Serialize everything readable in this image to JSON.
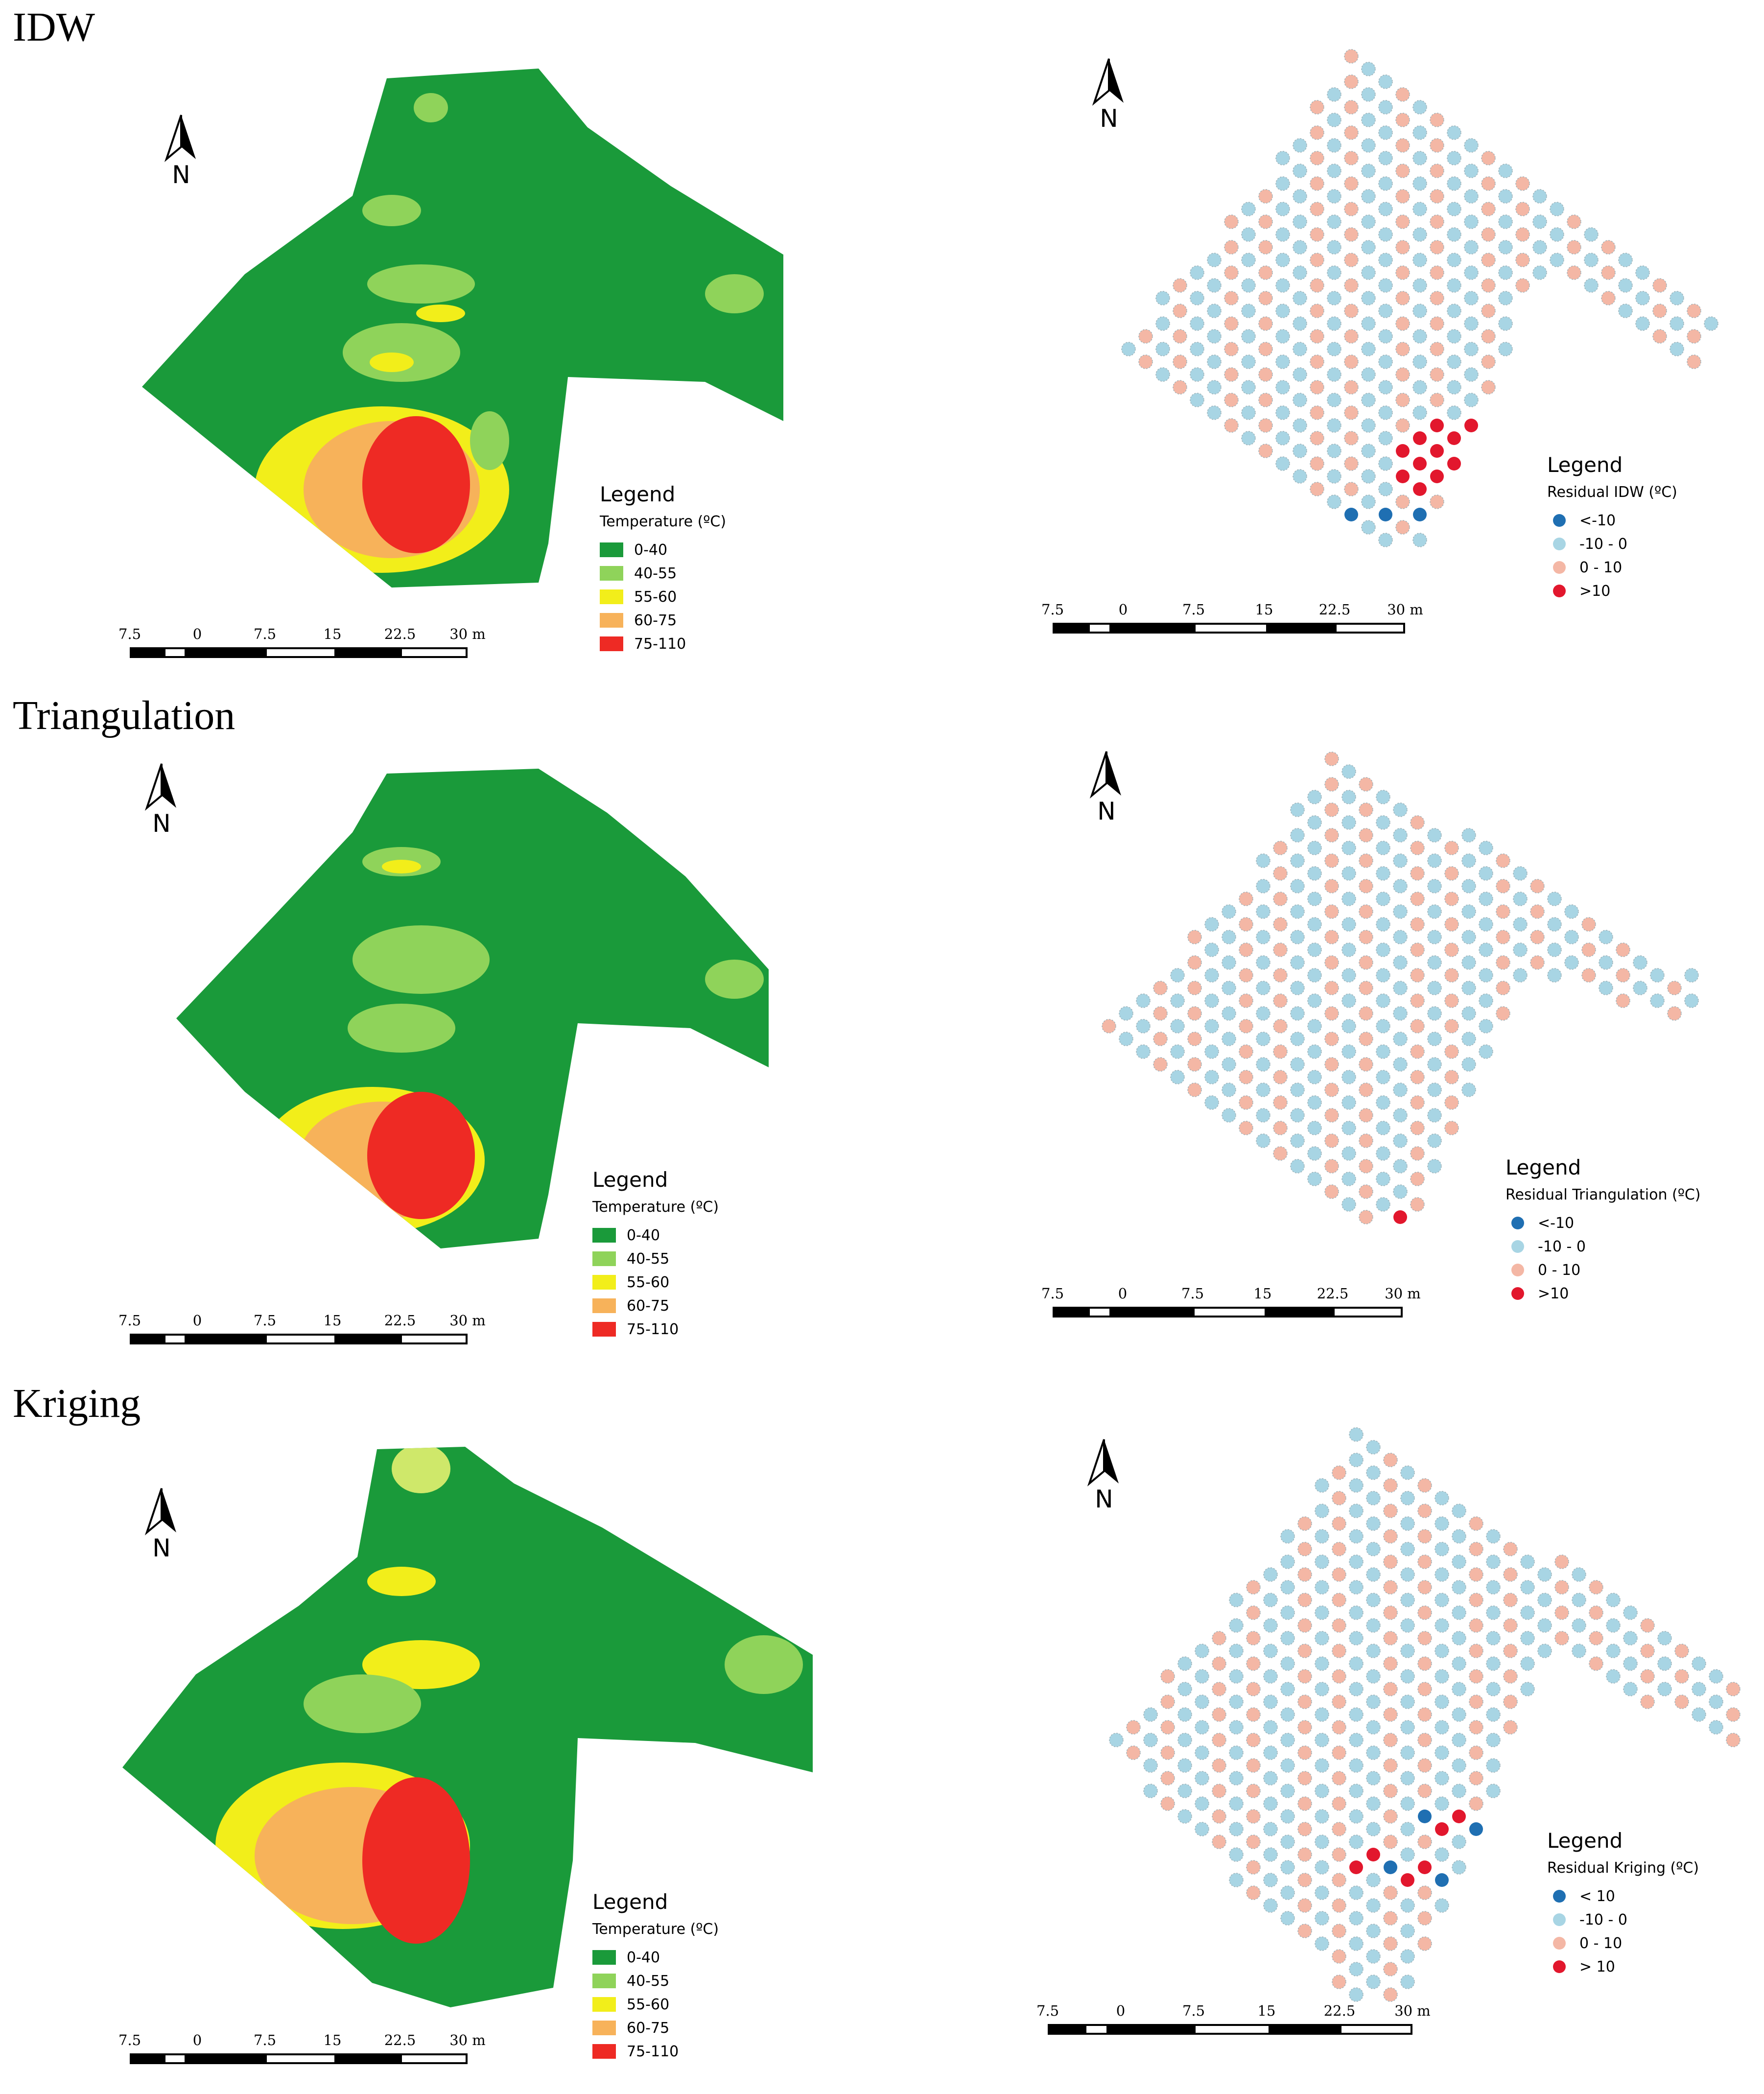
{
  "sections": [
    {
      "title": "IDW",
      "temp_legend": {
        "title": "Legend",
        "subtitle": "Temperature (ºC)"
      },
      "resid_legend": {
        "title": "Legend",
        "subtitle": "Residual IDW (ºC)",
        "items": [
          "<-10",
          "-10 - 0",
          "0 - 10",
          ">10"
        ]
      }
    },
    {
      "title": "Triangulation",
      "temp_legend": {
        "title": "Legend",
        "subtitle": "Temperature (ºC)"
      },
      "resid_legend": {
        "title": "Legend",
        "subtitle": "Residual Triangulation (ºC)",
        "items": [
          "<-10",
          "-10 - 0",
          "0 - 10",
          ">10"
        ]
      }
    },
    {
      "title": "Kriging",
      "temp_legend": {
        "title": "Legend",
        "subtitle": "Temperature (ºC)"
      },
      "resid_legend": {
        "title": "Legend",
        "subtitle": "Residual Kriging (ºC)",
        "items": [
          "< 10",
          "-10 - 0",
          "0 - 10",
          "> 10"
        ]
      }
    }
  ],
  "temperature_classes": [
    {
      "label": "0-40",
      "color": "#1a9a3a"
    },
    {
      "label": "40-55",
      "color": "#8fd35a"
    },
    {
      "label": "55-60",
      "color": "#f2ee1a"
    },
    {
      "label": "60-75",
      "color": "#f7b25a"
    },
    {
      "label": "75-110",
      "color": "#ee2a24"
    }
  ],
  "residual_colors": [
    "#1f6fb2",
    "#a8d5e4",
    "#f4b7a5",
    "#e2172d"
  ],
  "scale_ticks": [
    "7.5",
    "0",
    "7.5",
    "15",
    "22.5",
    "30 m"
  ],
  "north_label": "N"
}
